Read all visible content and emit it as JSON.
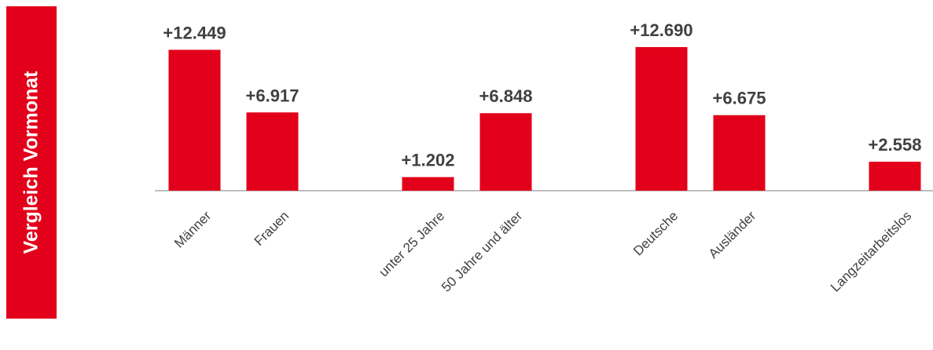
{
  "side_label": "Vergleich Vormonat",
  "colors": {
    "bar": "#e2001a",
    "axis": "#bfbfbf",
    "text": "#404040"
  },
  "chart_data": {
    "type": "bar",
    "categories": [
      "Männer",
      "Frauen",
      "",
      "unter 25 Jahre",
      "50 Jahre und älter",
      "",
      "Deutsche",
      "Ausländer",
      "",
      "Langzeitarbeitslos"
    ],
    "values": [
      12449,
      6917,
      null,
      1202,
      6848,
      null,
      12690,
      6675,
      null,
      2558
    ],
    "data_labels": [
      "+12.449",
      "+6.917",
      "",
      "+1.202",
      "+6.848",
      "",
      "+12.690",
      "+6.675",
      "",
      "+2.558"
    ],
    "title": "",
    "xlabel": "",
    "ylabel": "",
    "ylim": [
      0,
      14000
    ],
    "grid": false,
    "legend": "none"
  }
}
